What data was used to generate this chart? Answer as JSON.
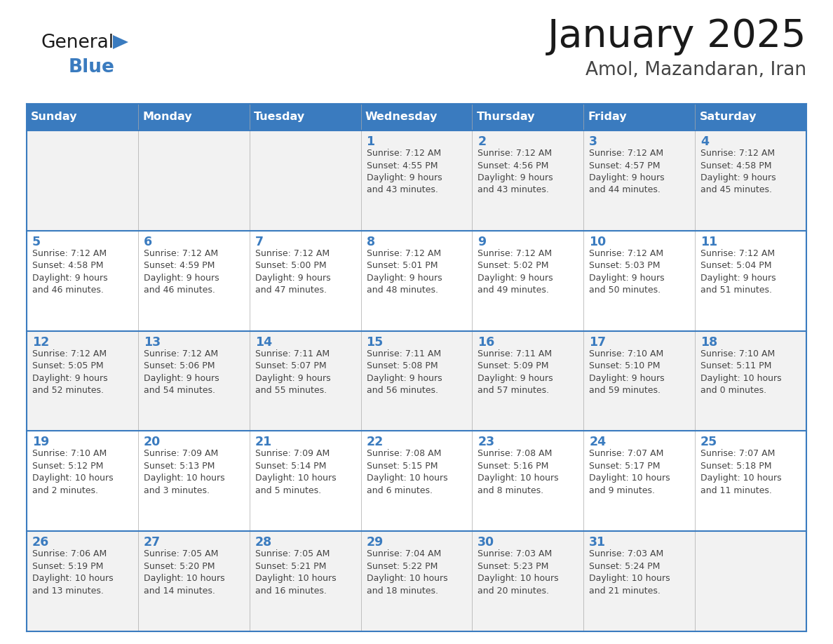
{
  "title": "January 2025",
  "subtitle": "Amol, Mazandaran, Iran",
  "days_of_week": [
    "Sunday",
    "Monday",
    "Tuesday",
    "Wednesday",
    "Thursday",
    "Friday",
    "Saturday"
  ],
  "header_bg_color": "#3a7bbf",
  "header_text_color": "#ffffff",
  "row_colors": [
    "#f2f2f2",
    "#ffffff",
    "#f2f2f2",
    "#ffffff",
    "#f2f2f2"
  ],
  "grid_line_color": "#3a7bbf",
  "title_color": "#1a1a1a",
  "subtitle_color": "#444444",
  "day_number_color": "#3a7bbf",
  "text_color": "#444444",
  "background_color": "#ffffff",
  "calendar_data": [
    [
      {
        "day": "",
        "sunrise": "",
        "sunset": "",
        "daylight": ""
      },
      {
        "day": "",
        "sunrise": "",
        "sunset": "",
        "daylight": ""
      },
      {
        "day": "",
        "sunrise": "",
        "sunset": "",
        "daylight": ""
      },
      {
        "day": "1",
        "sunrise": "7:12 AM",
        "sunset": "4:55 PM",
        "daylight": "9 hours and 43 minutes."
      },
      {
        "day": "2",
        "sunrise": "7:12 AM",
        "sunset": "4:56 PM",
        "daylight": "9 hours and 43 minutes."
      },
      {
        "day": "3",
        "sunrise": "7:12 AM",
        "sunset": "4:57 PM",
        "daylight": "9 hours and 44 minutes."
      },
      {
        "day": "4",
        "sunrise": "7:12 AM",
        "sunset": "4:58 PM",
        "daylight": "9 hours and 45 minutes."
      }
    ],
    [
      {
        "day": "5",
        "sunrise": "7:12 AM",
        "sunset": "4:58 PM",
        "daylight": "9 hours and 46 minutes."
      },
      {
        "day": "6",
        "sunrise": "7:12 AM",
        "sunset": "4:59 PM",
        "daylight": "9 hours and 46 minutes."
      },
      {
        "day": "7",
        "sunrise": "7:12 AM",
        "sunset": "5:00 PM",
        "daylight": "9 hours and 47 minutes."
      },
      {
        "day": "8",
        "sunrise": "7:12 AM",
        "sunset": "5:01 PM",
        "daylight": "9 hours and 48 minutes."
      },
      {
        "day": "9",
        "sunrise": "7:12 AM",
        "sunset": "5:02 PM",
        "daylight": "9 hours and 49 minutes."
      },
      {
        "day": "10",
        "sunrise": "7:12 AM",
        "sunset": "5:03 PM",
        "daylight": "9 hours and 50 minutes."
      },
      {
        "day": "11",
        "sunrise": "7:12 AM",
        "sunset": "5:04 PM",
        "daylight": "9 hours and 51 minutes."
      }
    ],
    [
      {
        "day": "12",
        "sunrise": "7:12 AM",
        "sunset": "5:05 PM",
        "daylight": "9 hours and 52 minutes."
      },
      {
        "day": "13",
        "sunrise": "7:12 AM",
        "sunset": "5:06 PM",
        "daylight": "9 hours and 54 minutes."
      },
      {
        "day": "14",
        "sunrise": "7:11 AM",
        "sunset": "5:07 PM",
        "daylight": "9 hours and 55 minutes."
      },
      {
        "day": "15",
        "sunrise": "7:11 AM",
        "sunset": "5:08 PM",
        "daylight": "9 hours and 56 minutes."
      },
      {
        "day": "16",
        "sunrise": "7:11 AM",
        "sunset": "5:09 PM",
        "daylight": "9 hours and 57 minutes."
      },
      {
        "day": "17",
        "sunrise": "7:10 AM",
        "sunset": "5:10 PM",
        "daylight": "9 hours and 59 minutes."
      },
      {
        "day": "18",
        "sunrise": "7:10 AM",
        "sunset": "5:11 PM",
        "daylight": "10 hours and 0 minutes."
      }
    ],
    [
      {
        "day": "19",
        "sunrise": "7:10 AM",
        "sunset": "5:12 PM",
        "daylight": "10 hours and 2 minutes."
      },
      {
        "day": "20",
        "sunrise": "7:09 AM",
        "sunset": "5:13 PM",
        "daylight": "10 hours and 3 minutes."
      },
      {
        "day": "21",
        "sunrise": "7:09 AM",
        "sunset": "5:14 PM",
        "daylight": "10 hours and 5 minutes."
      },
      {
        "day": "22",
        "sunrise": "7:08 AM",
        "sunset": "5:15 PM",
        "daylight": "10 hours and 6 minutes."
      },
      {
        "day": "23",
        "sunrise": "7:08 AM",
        "sunset": "5:16 PM",
        "daylight": "10 hours and 8 minutes."
      },
      {
        "day": "24",
        "sunrise": "7:07 AM",
        "sunset": "5:17 PM",
        "daylight": "10 hours and 9 minutes."
      },
      {
        "day": "25",
        "sunrise": "7:07 AM",
        "sunset": "5:18 PM",
        "daylight": "10 hours and 11 minutes."
      }
    ],
    [
      {
        "day": "26",
        "sunrise": "7:06 AM",
        "sunset": "5:19 PM",
        "daylight": "10 hours and 13 minutes."
      },
      {
        "day": "27",
        "sunrise": "7:05 AM",
        "sunset": "5:20 PM",
        "daylight": "10 hours and 14 minutes."
      },
      {
        "day": "28",
        "sunrise": "7:05 AM",
        "sunset": "5:21 PM",
        "daylight": "10 hours and 16 minutes."
      },
      {
        "day": "29",
        "sunrise": "7:04 AM",
        "sunset": "5:22 PM",
        "daylight": "10 hours and 18 minutes."
      },
      {
        "day": "30",
        "sunrise": "7:03 AM",
        "sunset": "5:23 PM",
        "daylight": "10 hours and 20 minutes."
      },
      {
        "day": "31",
        "sunrise": "7:03 AM",
        "sunset": "5:24 PM",
        "daylight": "10 hours and 21 minutes."
      },
      {
        "day": "",
        "sunrise": "",
        "sunset": "",
        "daylight": ""
      }
    ]
  ]
}
